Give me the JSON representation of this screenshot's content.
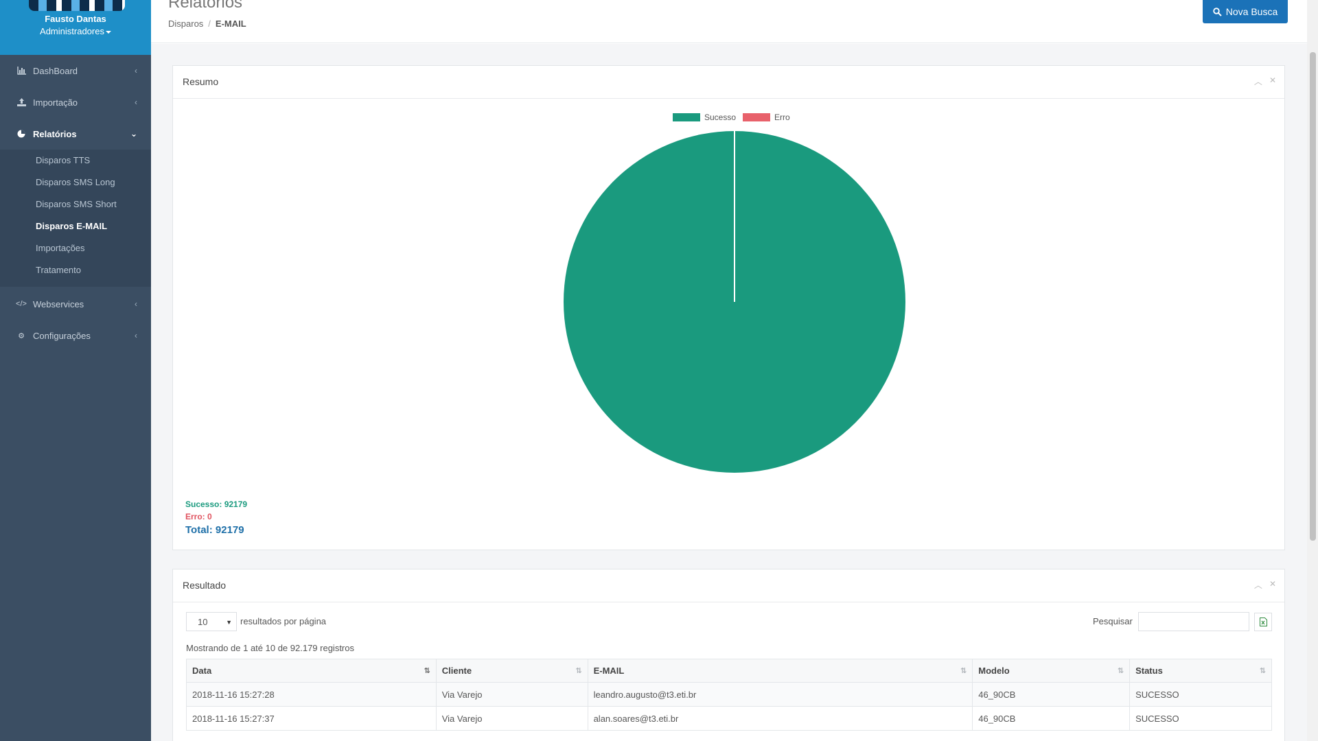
{
  "user": {
    "name": "Fausto Dantas",
    "role": "Administradores"
  },
  "sidebar": {
    "items": [
      {
        "label": "DashBoard",
        "icon": "bar-chart-icon"
      },
      {
        "label": "Importação",
        "icon": "upload-icon"
      },
      {
        "label": "Relatórios",
        "icon": "pie-chart-icon"
      },
      {
        "label": "Webservices",
        "icon": "code-icon"
      },
      {
        "label": "Configurações",
        "icon": "gear-icon"
      }
    ],
    "submenu": [
      "Disparos TTS",
      "Disparos SMS Long",
      "Disparos SMS Short",
      "Disparos E-MAIL",
      "Importações",
      "Tratamento"
    ]
  },
  "header": {
    "title": "Relatórios",
    "breadcrumb": [
      "Disparos",
      "E-MAIL"
    ],
    "new_search_label": "Nova Busca"
  },
  "summary_panel": {
    "title": "Resumo",
    "success_text": "Sucesso: 92179",
    "error_text": "Erro: 0",
    "total_text": "Total: 92179"
  },
  "chart_data": {
    "type": "pie",
    "categories": [
      "Sucesso",
      "Erro"
    ],
    "values": [
      92179,
      0
    ],
    "colors": [
      "#1a9a7e",
      "#e8616b"
    ],
    "legend": "top"
  },
  "results_panel": {
    "title": "Resultado",
    "page_length": "10",
    "page_length_label": "resultados por página",
    "search_label": "Pesquisar",
    "info": "Mostrando de 1 até 10 de 92.179 registros",
    "columns": [
      "Data",
      "Cliente",
      "E-MAIL",
      "Modelo",
      "Status"
    ],
    "rows": [
      [
        "2018-11-16 15:27:28",
        "Via Varejo",
        "leandro.augusto@t3.eti.br",
        "46_90CB",
        "SUCESSO"
      ],
      [
        "2018-11-16 15:27:37",
        "Via Varejo",
        "alan.soares@t3.eti.br",
        "46_90CB",
        "SUCESSO"
      ]
    ]
  }
}
